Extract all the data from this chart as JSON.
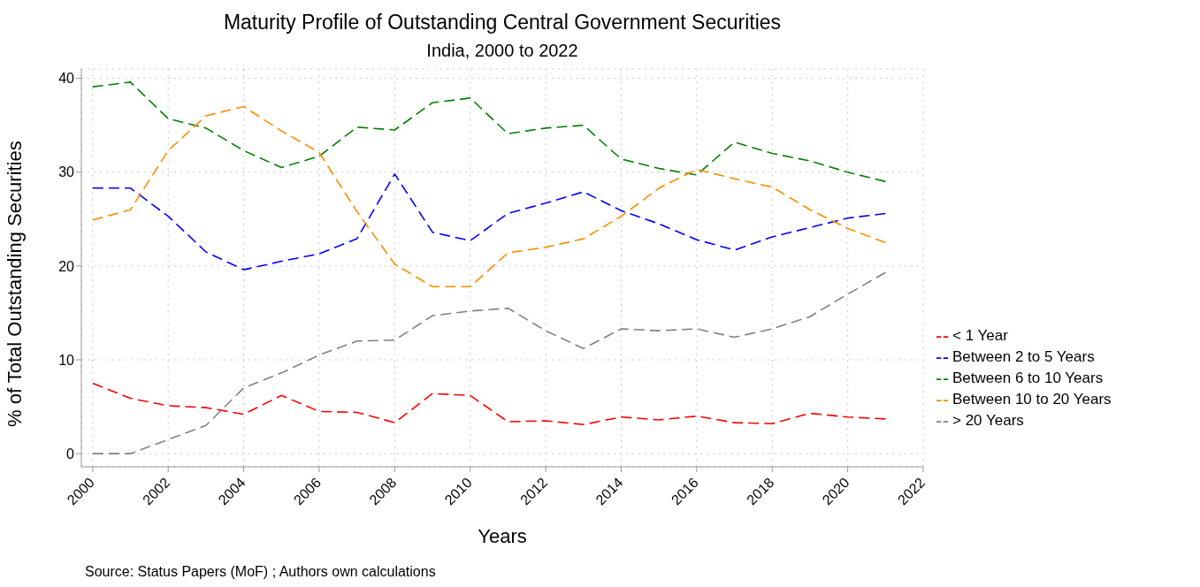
{
  "chart_data": {
    "type": "line",
    "title": "Maturity Profile of Outstanding Central Government Securities",
    "subtitle": "India, 2000 to 2022",
    "xlabel": "Years",
    "ylabel": "% of Total Outstanding Securities",
    "annotations": [
      "Source: Status Papers (MoF) ; Authors own calculations"
    ],
    "x": [
      2000,
      2001,
      2002,
      2003,
      2004,
      2005,
      2006,
      2007,
      2008,
      2009,
      2010,
      2011,
      2012,
      2013,
      2014,
      2015,
      2016,
      2017,
      2018,
      2019,
      2020,
      2021
    ],
    "series": [
      {
        "name": "< 1 Year",
        "color": "#ff0000",
        "values": [
          7.5,
          5.9,
          5.1,
          4.9,
          4.2,
          6.2,
          4.5,
          4.4,
          3.3,
          6.4,
          6.2,
          3.4,
          3.5,
          3.1,
          3.9,
          3.6,
          4.0,
          3.3,
          3.2,
          4.3,
          3.9,
          3.7
        ]
      },
      {
        "name": "Between 2 to 5 Years",
        "color": "#0000ff",
        "values": [
          28.3,
          28.3,
          25.3,
          21.5,
          19.6,
          20.5,
          21.3,
          22.9,
          29.8,
          23.6,
          22.7,
          25.6,
          26.7,
          27.9,
          25.9,
          24.5,
          22.8,
          21.7,
          23.1,
          24.1,
          25.1,
          25.6
        ]
      },
      {
        "name": "Between 6 to 10 Years",
        "color": "#008000",
        "values": [
          39.1,
          39.6,
          35.7,
          34.7,
          32.3,
          30.5,
          31.7,
          34.8,
          34.5,
          37.4,
          37.9,
          34.1,
          34.7,
          35.0,
          31.4,
          30.4,
          29.7,
          33.2,
          32.0,
          31.2,
          30.0,
          29.0
        ]
      },
      {
        "name": "Between 10 to 20 Years",
        "color": "#ff8c00",
        "values": [
          24.9,
          26.0,
          32.3,
          36.0,
          37.0,
          34.4,
          32.1,
          25.8,
          20.2,
          17.8,
          17.8,
          21.4,
          22.0,
          22.9,
          25.3,
          28.3,
          30.3,
          29.3,
          28.4,
          26.0,
          24.0,
          22.5
        ]
      },
      {
        "name": "> 20 Years",
        "color": "#808080",
        "values": [
          0,
          0,
          1.5,
          3.0,
          7.0,
          8.6,
          10.5,
          12.0,
          12.1,
          14.7,
          15.2,
          15.5,
          13.1,
          11.2,
          13.3,
          13.1,
          13.3,
          12.4,
          13.3,
          14.6,
          17.0,
          19.3
        ]
      }
    ],
    "xlim": [
      1999.7,
      2022
    ],
    "xticks": [
      2000,
      2002,
      2004,
      2006,
      2008,
      2010,
      2012,
      2014,
      2016,
      2018,
      2020,
      2022
    ],
    "ylim": [
      -1.4,
      41
    ],
    "yticks": [
      0,
      10,
      20,
      30,
      40
    ],
    "grid": true,
    "legend": "right",
    "marker": "none",
    "line_style": "dashed"
  }
}
